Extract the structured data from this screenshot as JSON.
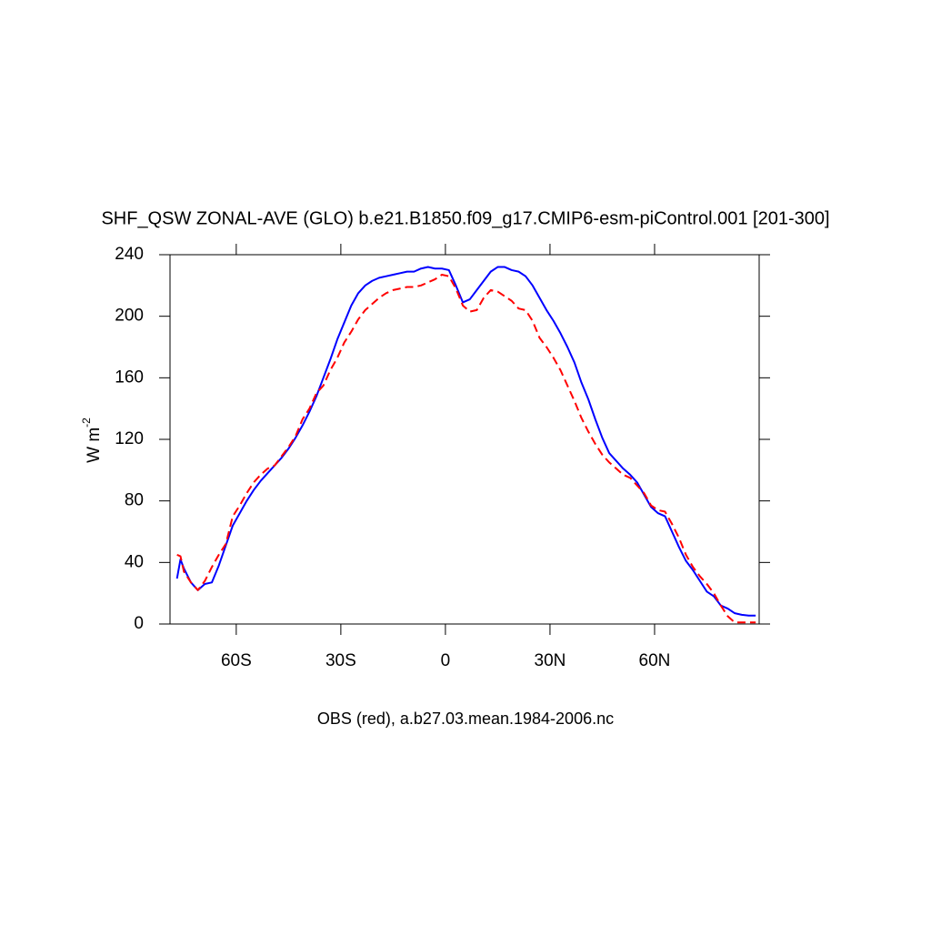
{
  "chart_data": {
    "type": "line",
    "title": "SHF_QSW ZONAL-AVE (GLO) b.e21.B1850.f09_g17.CMIP6-esm-piControl.001 [201-300]",
    "ylabel": "W m",
    "ylabel_superscript": "-2",
    "xlabel": "OBS (red), a.b27.03.mean.1984-2006.nc",
    "xlim": [
      -79,
      90
    ],
    "ylim": [
      0,
      240
    ],
    "xticks": [
      {
        "value": -60,
        "label": "60S"
      },
      {
        "value": -30,
        "label": "30S"
      },
      0,
      {
        "value": 30,
        "label": "30N"
      },
      {
        "value": 60,
        "label": "60N"
      }
    ],
    "yticks": [
      0,
      40,
      80,
      120,
      160,
      200,
      240
    ],
    "x": [
      -77,
      -76,
      -75,
      -73,
      -71,
      -69,
      -67,
      -65,
      -63,
      -61,
      -59,
      -57,
      -55,
      -53,
      -51,
      -49,
      -47,
      -45,
      -43,
      -41,
      -39,
      -37,
      -35,
      -33,
      -31,
      -29,
      -27,
      -25,
      -23,
      -21,
      -19,
      -17,
      -15,
      -13,
      -11,
      -9,
      -7,
      -5,
      -3,
      -1,
      1,
      3,
      5,
      7,
      9,
      11,
      13,
      15,
      17,
      19,
      21,
      23,
      25,
      27,
      29,
      31,
      33,
      35,
      37,
      39,
      41,
      43,
      45,
      47,
      49,
      51,
      53,
      55,
      57,
      59,
      61,
      63,
      65,
      67,
      69,
      71,
      73,
      75,
      77,
      79,
      81,
      83,
      85,
      87,
      89
    ],
    "series": [
      {
        "color": "#0000ff",
        "dashed": false,
        "values": [
          29.5,
          42,
          36,
          27,
          22,
          26,
          27,
          38,
          51,
          64,
          72,
          80,
          87,
          93,
          98,
          103,
          108,
          114,
          121,
          129,
          138,
          148,
          160,
          172,
          185,
          196,
          207,
          215,
          220,
          223,
          225,
          226,
          227,
          228,
          229,
          229,
          231,
          232,
          231,
          231,
          230,
          220,
          209,
          211,
          217,
          223,
          229,
          232,
          232,
          230,
          229,
          226,
          220,
          212,
          204,
          197,
          189,
          180,
          170,
          157,
          146,
          133,
          121,
          111,
          106,
          101,
          97,
          92,
          84,
          76,
          72,
          70,
          60,
          50,
          41,
          35,
          28,
          21,
          18,
          12,
          10,
          7,
          6,
          5.5,
          5.5
        ]
      },
      {
        "color": "#ff0000",
        "dashed": true,
        "values": [
          45,
          44,
          34,
          27,
          22,
          28,
          37,
          45,
          52,
          70,
          77,
          85,
          92,
          97,
          101,
          103,
          109,
          115,
          122,
          133,
          140,
          150,
          155,
          165,
          173,
          183,
          190,
          198,
          204,
          208,
          212,
          215,
          217,
          218,
          219,
          219,
          220,
          222,
          224,
          227,
          226,
          218,
          207,
          203,
          204,
          212,
          217,
          216,
          213,
          210,
          205,
          204,
          197,
          186,
          180,
          173,
          165,
          155,
          145,
          134,
          125,
          117,
          110,
          105,
          101,
          97,
          95,
          90,
          85,
          77,
          74,
          73,
          65,
          56,
          45,
          37,
          31,
          26,
          20,
          12,
          5,
          1,
          1,
          1,
          1
        ]
      }
    ]
  }
}
